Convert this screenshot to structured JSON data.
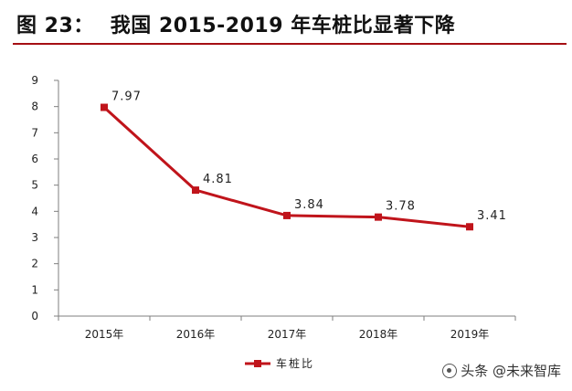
{
  "figure": {
    "label": "图 23：",
    "title": "我国 2015-2019 年车桩比显著下降"
  },
  "chart_data": {
    "type": "line",
    "categories": [
      "2015年",
      "2016年",
      "2017年",
      "2018年",
      "2019年"
    ],
    "series": [
      {
        "name": "车桩比",
        "values": [
          7.97,
          4.81,
          3.84,
          3.78,
          3.41
        ],
        "color": "#c0141b"
      }
    ],
    "data_labels": [
      "7.97",
      "4.81",
      "3.84",
      "3.78",
      "3.41"
    ],
    "ylim": [
      0,
      9
    ],
    "yticks": [
      0,
      1,
      2,
      3,
      4,
      5,
      6,
      7,
      8,
      9
    ],
    "grid": false,
    "legend_position": "bottom-left",
    "marker": "square"
  },
  "watermark": {
    "text": "头条 @未来智库"
  }
}
